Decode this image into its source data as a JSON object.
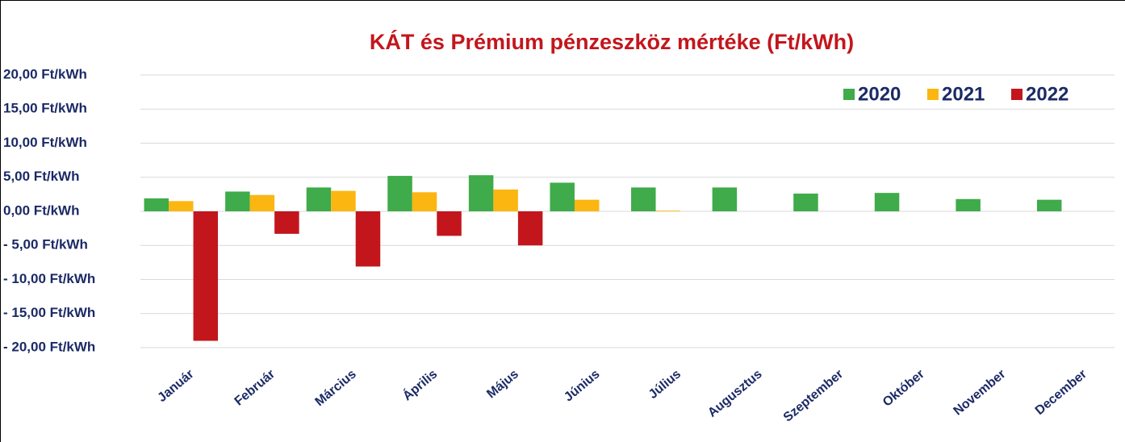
{
  "chart_data": {
    "type": "bar",
    "title": "KÁT és Prémium pénzeszköz mértéke (Ft/kWh)",
    "categories": [
      "Január",
      "Február",
      "Március",
      "Április",
      "Május",
      "Június",
      "Július",
      "Augusztus",
      "Szeptember",
      "Október",
      "November",
      "December"
    ],
    "series": [
      {
        "name": "2020",
        "color": "#3fab4a",
        "values": [
          1.9,
          2.9,
          3.5,
          5.2,
          5.3,
          4.2,
          3.5,
          3.5,
          2.6,
          2.7,
          1.8,
          1.7
        ]
      },
      {
        "name": "2021",
        "color": "#fbb612",
        "values": [
          1.5,
          2.4,
          3.0,
          2.8,
          3.2,
          1.7,
          0.1,
          null,
          null,
          null,
          null,
          null
        ]
      },
      {
        "name": "2022",
        "color": "#c3161c",
        "values": [
          -19.0,
          -3.3,
          -8.1,
          -3.6,
          -5.0,
          null,
          null,
          null,
          null,
          null,
          null,
          null
        ]
      }
    ],
    "ylim": [
      -20,
      20
    ],
    "yticks": [
      {
        "value": -20,
        "label": "- 20,00 Ft/kWh"
      },
      {
        "value": -15,
        "label": "- 15,00 Ft/kWh"
      },
      {
        "value": -10,
        "label": "- 10,00 Ft/kWh"
      },
      {
        "value": -5,
        "label": "- 5,00 Ft/kWh"
      },
      {
        "value": 0,
        "label": "0,00 Ft/kWh"
      },
      {
        "value": 5,
        "label": "5,00 Ft/kWh"
      },
      {
        "value": 10,
        "label": "10,00 Ft/kWh"
      },
      {
        "value": 15,
        "label": "15,00 Ft/kWh"
      },
      {
        "value": 20,
        "label": "20,00 Ft/kWh"
      }
    ],
    "grid": true,
    "legend": "top-right"
  }
}
